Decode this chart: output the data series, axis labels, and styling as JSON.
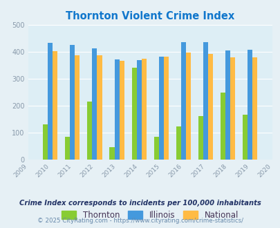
{
  "title": "Thornton Violent Crime Index",
  "years": [
    2010,
    2011,
    2012,
    2013,
    2014,
    2015,
    2016,
    2017,
    2018,
    2019
  ],
  "thornton": [
    132,
    85,
    215,
    46,
    342,
    86,
    122,
    163,
    248,
    167
  ],
  "illinois": [
    433,
    427,
    414,
    373,
    369,
    383,
    437,
    437,
    405,
    408
  ],
  "national": [
    404,
    387,
    387,
    366,
    375,
    383,
    397,
    394,
    380,
    379
  ],
  "thornton_color": "#88cc33",
  "illinois_color": "#4499dd",
  "national_color": "#ffbb44",
  "bg_color": "#e6f0f5",
  "plot_bg": "#ddeef5",
  "xlim": [
    2009,
    2020
  ],
  "ylim": [
    0,
    500
  ],
  "yticks": [
    0,
    100,
    200,
    300,
    400,
    500
  ],
  "footnote1": "Crime Index corresponds to incidents per 100,000 inhabitants",
  "footnote2": "© 2025 CityRating.com - https://www.cityrating.com/crime-statistics/",
  "title_color": "#1177cc",
  "footnote1_color": "#223366",
  "footnote2_color": "#6688aa",
  "bar_width": 0.22,
  "legend_labels": [
    "Thornton",
    "Illinois",
    "National"
  ],
  "legend_text_color": "#443355",
  "tick_color": "#8899aa",
  "grid_color": "#ffffff"
}
